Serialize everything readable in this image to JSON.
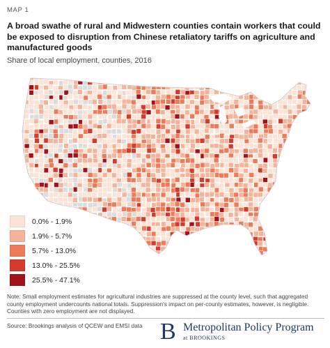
{
  "header": {
    "map_label": "MAP 1",
    "title": "A broad swathe of rural and Midwestern counties contain workers that could be exposed to disruption from Chinese retaliatory tariffs on agriculture and manufactured goods",
    "subtitle": "Share of local employment, counties, 2016"
  },
  "legend": {
    "items": [
      {
        "label": "0.0% - 1.9%",
        "color": "#fbe3d6"
      },
      {
        "label": "1.9% - 5.7%",
        "color": "#f5b49a"
      },
      {
        "label": "5.7% - 13.0%",
        "color": "#ee7a58"
      },
      {
        "label": "13.0% - 25.5%",
        "color": "#d63a2a"
      },
      {
        "label": "25.5% - 47.1%",
        "color": "#a31218"
      }
    ]
  },
  "map": {
    "no_data_color": "#dcdcdc",
    "border_color": "#ffffff"
  },
  "note": "Note: Small employment estimates for agricultural industries are suppressed at the county level, such that aggregated county employment undercounts national totals. Suppression's impact on per-county estimates, however, is negligible. Counties with zero employment are not displayed.",
  "source": "Source: Brookings analysis of QCEW and EMSI data",
  "brand": {
    "mark": "B",
    "name": "Metropolitan Policy Program",
    "sub": "at BROOKINGS"
  }
}
